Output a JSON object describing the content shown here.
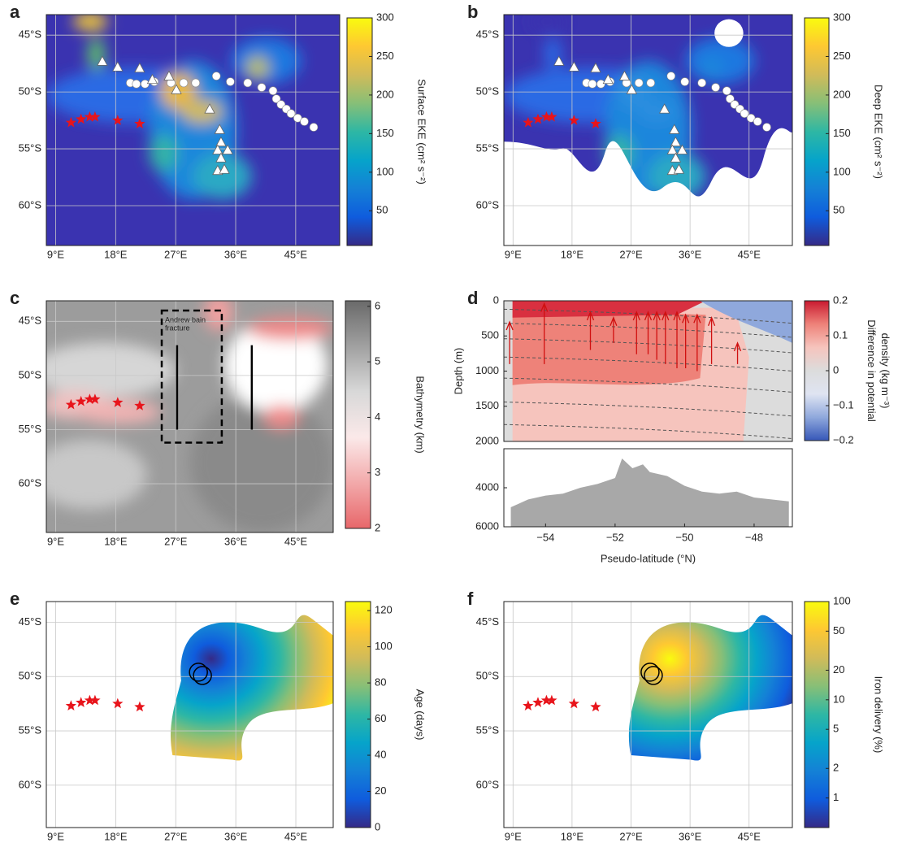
{
  "chart_data": [
    {
      "type": "map",
      "panel_label": "a",
      "xlim": [
        7.6,
        51.6
      ],
      "ylim": [
        -63.5,
        -43.2
      ],
      "grid": true,
      "field": "eke-surface",
      "xticks": [
        {
          "value": 9,
          "label": "9°E"
        },
        {
          "value": 18,
          "label": "18°E"
        },
        {
          "value": 27,
          "label": "27°E"
        },
        {
          "value": 36,
          "label": "36°E"
        },
        {
          "value": 45,
          "label": "45°E"
        }
      ],
      "yticks": [
        {
          "value": -45,
          "label": "45°S"
        },
        {
          "value": -50,
          "label": "50°S"
        },
        {
          "value": -55,
          "label": "55°S"
        },
        {
          "value": -60,
          "label": "60°S"
        }
      ],
      "colorbar": {
        "label": [
          "Surface EKE (cm² s⁻²)"
        ],
        "lim": [
          5,
          300
        ],
        "ticks": [
          50,
          100,
          150,
          200,
          250,
          300
        ],
        "scale": "linear",
        "colormap": "parula"
      },
      "stars": {
        "x": [
          11.3,
          12.8,
          14.1,
          14.9,
          18.3,
          21.6
        ],
        "y": [
          -52.7,
          -52.4,
          -52.2,
          -52.2,
          -52.5,
          -52.8
        ],
        "color": "#e8141b"
      },
      "triangles": {
        "x": [
          16.0,
          18.3,
          21.6,
          23.5,
          26.0,
          27.1,
          32.1,
          33.6,
          33.8,
          33.3,
          34.8,
          33.8,
          33.3,
          34.3
        ],
        "y": [
          -47.3,
          -47.8,
          -47.9,
          -48.9,
          -48.6,
          -49.8,
          -51.5,
          -53.3,
          -54.4,
          -55.1,
          -55.1,
          -55.8,
          -56.9,
          -56.8
        ]
      },
      "circles": {
        "x": [
          20.2,
          21.1,
          22.4,
          23.8,
          26.3,
          28.2,
          30.0,
          33.1,
          35.2,
          37.8,
          39.9,
          41.6,
          42.1,
          42.8,
          43.6,
          44.3,
          45.3,
          46.3,
          47.7
        ],
        "y": [
          -49.2,
          -49.3,
          -49.3,
          -49.1,
          -49.2,
          -49.2,
          -49.2,
          -48.6,
          -49.1,
          -49.2,
          -49.6,
          -49.9,
          -50.6,
          -51.1,
          -51.5,
          -51.9,
          -52.3,
          -52.6,
          -53.1
        ]
      }
    },
    {
      "type": "map",
      "panel_label": "b",
      "xlim": [
        7.6,
        51.6
      ],
      "ylim": [
        -63.5,
        -43.2
      ],
      "grid": true,
      "field": "eke-deep",
      "xticks": [
        {
          "value": 9,
          "label": "9°E"
        },
        {
          "value": 18,
          "label": "18°E"
        },
        {
          "value": 27,
          "label": "27°E"
        },
        {
          "value": 36,
          "label": "36°E"
        },
        {
          "value": 45,
          "label": "45°E"
        }
      ],
      "yticks": [
        {
          "value": -45,
          "label": "45°S"
        },
        {
          "value": -50,
          "label": "50°S"
        },
        {
          "value": -55,
          "label": "55°S"
        },
        {
          "value": -60,
          "label": "60°S"
        }
      ],
      "colorbar": {
        "label": [
          "Deep EKE (cm² s⁻²)"
        ],
        "lim": [
          5,
          300
        ],
        "ticks": [
          50,
          100,
          150,
          200,
          250,
          300
        ],
        "scale": "linear",
        "colormap": "parula"
      },
      "stars": {
        "x": [
          11.3,
          12.8,
          14.1,
          14.9,
          18.3,
          21.6
        ],
        "y": [
          -52.7,
          -52.4,
          -52.2,
          -52.2,
          -52.5,
          -52.8
        ],
        "color": "#e8141b"
      },
      "triangles": {
        "x": [
          16.0,
          18.3,
          21.6,
          23.5,
          26.0,
          27.1,
          32.1,
          33.6,
          33.8,
          33.3,
          34.8,
          33.8,
          33.3,
          34.3
        ],
        "y": [
          -47.3,
          -47.8,
          -47.9,
          -48.9,
          -48.6,
          -49.8,
          -51.5,
          -53.3,
          -54.4,
          -55.1,
          -55.1,
          -55.8,
          -56.9,
          -56.8
        ]
      },
      "circles": {
        "x": [
          20.2,
          21.1,
          22.4,
          23.8,
          26.3,
          28.2,
          30.0,
          33.1,
          35.2,
          37.8,
          39.9,
          41.6,
          42.1,
          42.8,
          43.6,
          44.3,
          45.3,
          46.3,
          47.7
        ],
        "y": [
          -49.2,
          -49.3,
          -49.3,
          -49.1,
          -49.2,
          -49.2,
          -49.2,
          -48.6,
          -49.1,
          -49.2,
          -49.6,
          -49.9,
          -50.6,
          -51.1,
          -51.5,
          -51.9,
          -52.3,
          -52.6,
          -53.1
        ]
      }
    },
    {
      "type": "map",
      "panel_label": "c",
      "xlim": [
        7.6,
        50.6
      ],
      "ylim": [
        -64.5,
        -43.1
      ],
      "grid": true,
      "field": "bathymetry",
      "xticks": [
        {
          "value": 9,
          "label": "9°E"
        },
        {
          "value": 18,
          "label": "18°E"
        },
        {
          "value": 27,
          "label": "27°E"
        },
        {
          "value": 36,
          "label": "36°E"
        },
        {
          "value": 45,
          "label": "45°E"
        }
      ],
      "yticks": [
        {
          "value": -45,
          "label": "45°S"
        },
        {
          "value": -50,
          "label": "50°S"
        },
        {
          "value": -55,
          "label": "55°S"
        },
        {
          "value": -60,
          "label": "60°S"
        }
      ],
      "colorbar": {
        "label": [
          "Bathymetry (km)"
        ],
        "lim": [
          2,
          6.1
        ],
        "ticks": [
          2,
          3,
          4,
          5,
          6
        ],
        "scale": "linear",
        "colormap": "bathy"
      },
      "stars": {
        "x": [
          11.3,
          12.8,
          14.1,
          14.9,
          18.3,
          21.6
        ],
        "y": [
          -52.7,
          -52.4,
          -52.2,
          -52.2,
          -52.5,
          -52.8
        ],
        "color": "#e8141b"
      },
      "dashed_box": {
        "x": [
          24.9,
          33.9
        ],
        "y": [
          -44.0,
          -56.2
        ]
      },
      "lines": [
        {
          "x": [
            27.2,
            27.2
          ],
          "y": [
            -47.2,
            -55.0
          ]
        },
        {
          "x": [
            38.4,
            38.4
          ],
          "y": [
            -47.2,
            -55.0
          ]
        }
      ],
      "annotation": [
        "Andrew bain",
        "fracture"
      ]
    },
    {
      "type": "section",
      "panel_label": "d",
      "xlim": [
        -55.2,
        -46.9
      ],
      "ylim": [
        0,
        2000
      ],
      "invert_y": true,
      "grid": false,
      "xticks": [
        {
          "value": -54,
          "label": "−54"
        },
        {
          "value": -52,
          "label": "−52"
        },
        {
          "value": -50,
          "label": "−50"
        },
        {
          "value": -48,
          "label": "−48"
        }
      ],
      "yticks": [
        0,
        500,
        1000,
        1500,
        2000
      ],
      "xlabel": "Pseudo-latitude (°N)",
      "ylabel": "Depth (m)",
      "colorbar": {
        "label": [
          "Difference in potential",
          "density (kg m⁻³)"
        ],
        "lim": [
          -0.2,
          0.2
        ],
        "ticks": [
          {
            "value": -0.2,
            "label": "−0.2"
          },
          {
            "value": -0.1,
            "label": "−0.1"
          },
          0,
          0.1,
          0.2
        ],
        "scale": "linear",
        "colormap": "redblue"
      },
      "lower": {
        "ylim": [
          2000,
          6000
        ],
        "invert_y": true,
        "yticks": [
          4000,
          6000
        ],
        "color": "#a8a8a8",
        "x": [
          -55,
          -54.5,
          -54,
          -53.5,
          -53,
          -52.5,
          -52,
          -51.8,
          -51.5,
          -51.2,
          -51,
          -50.5,
          -50,
          -49.5,
          -49,
          -48.5,
          -48,
          -47.5,
          -47
        ],
        "values": [
          5000,
          4600,
          4400,
          4300,
          4000,
          3800,
          3500,
          2500,
          3000,
          2800,
          3200,
          3400,
          3900,
          4200,
          4300,
          4200,
          4500,
          4600,
          4700
        ]
      }
    },
    {
      "type": "map",
      "panel_label": "e",
      "xlim": [
        7.6,
        50.6
      ],
      "ylim": [
        -63.9,
        -43.1
      ],
      "grid": true,
      "field": "age",
      "xticks": [
        {
          "value": 9,
          "label": "9°E"
        },
        {
          "value": 18,
          "label": "18°E"
        },
        {
          "value": 27,
          "label": "27°E"
        },
        {
          "value": 36,
          "label": "36°E"
        },
        {
          "value": 45,
          "label": "45°E"
        }
      ],
      "yticks": [
        {
          "value": -45,
          "label": "45°S"
        },
        {
          "value": -50,
          "label": "50°S"
        },
        {
          "value": -55,
          "label": "55°S"
        },
        {
          "value": -60,
          "label": "60°S"
        }
      ],
      "colorbar": {
        "label": [
          "Age (days)"
        ],
        "lim": [
          0,
          125
        ],
        "ticks": [
          0,
          20,
          40,
          60,
          80,
          100,
          120
        ],
        "scale": "linear",
        "colormap": "parula"
      },
      "stars": {
        "x": [
          11.3,
          12.8,
          14.1,
          14.9,
          18.3,
          21.6
        ],
        "y": [
          -52.7,
          -52.4,
          -52.2,
          -52.2,
          -52.5,
          -52.8
        ],
        "color": "#e8141b"
      },
      "rings": {
        "x": [
          30.4,
          31.0
        ],
        "y": [
          -49.6,
          -49.9
        ]
      }
    },
    {
      "type": "map",
      "panel_label": "f",
      "xlim": [
        7.6,
        51.6
      ],
      "ylim": [
        -63.9,
        -43.1
      ],
      "grid": true,
      "field": "iron",
      "xticks": [
        {
          "value": 9,
          "label": "9°E"
        },
        {
          "value": 18,
          "label": "18°E"
        },
        {
          "value": 27,
          "label": "27°E"
        },
        {
          "value": 36,
          "label": "36°E"
        },
        {
          "value": 45,
          "label": "45°E"
        }
      ],
      "yticks": [
        {
          "value": -45,
          "label": "45°S"
        },
        {
          "value": -50,
          "label": "50°S"
        },
        {
          "value": -55,
          "label": "55°S"
        },
        {
          "value": -60,
          "label": "60°S"
        }
      ],
      "colorbar": {
        "label": [
          "Iron delivery (%)"
        ],
        "lim": [
          0.5,
          100
        ],
        "ticks": [
          1,
          2,
          5,
          10,
          20,
          50,
          100
        ],
        "scale": "log",
        "colormap": "parula"
      },
      "stars": {
        "x": [
          11.3,
          12.8,
          14.1,
          14.9,
          18.3,
          21.6
        ],
        "y": [
          -52.7,
          -52.4,
          -52.2,
          -52.2,
          -52.5,
          -52.8
        ],
        "color": "#e8141b"
      },
      "rings": {
        "x": [
          29.9,
          30.4
        ],
        "y": [
          -49.6,
          -49.9
        ]
      }
    }
  ]
}
